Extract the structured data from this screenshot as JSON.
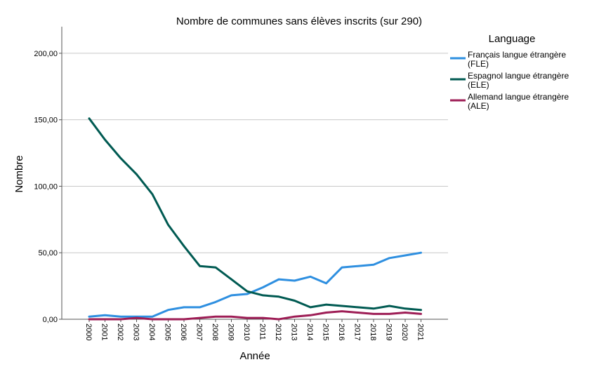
{
  "chart_data": {
    "type": "line",
    "title": "Nombre de communes sans élèves inscrits (sur 290)",
    "xlabel": "Année",
    "ylabel": "Nombre",
    "x": [
      "2000",
      "2001",
      "2002",
      "2003",
      "2004",
      "2005",
      "2006",
      "2007",
      "2008",
      "2009",
      "2010",
      "2011",
      "2012",
      "2013",
      "2014",
      "2015",
      "2016",
      "2017",
      "2018",
      "2019",
      "2020",
      "2021"
    ],
    "ylim": [
      0,
      220
    ],
    "yticks": [
      0,
      50,
      100,
      150,
      200
    ],
    "ytick_labels": [
      "0,00",
      "50,00",
      "100,00",
      "150,00",
      "200,00"
    ],
    "grid": true,
    "legend": {
      "title": "Language",
      "position": "right"
    },
    "series": [
      {
        "name": "Français langue étrangère (FLE)",
        "name_lines": [
          "Français langue étrangère",
          "(FLE)"
        ],
        "color": "#2e8fe0",
        "values": [
          2,
          3,
          2,
          2,
          2,
          7,
          9,
          9,
          13,
          18,
          19,
          24,
          30,
          29,
          32,
          27,
          39,
          40,
          41,
          46,
          48,
          50
        ]
      },
      {
        "name": "Espagnol langue étrangère (ELE)",
        "name_lines": [
          "Espagnol langue étrangère",
          "(ELE)"
        ],
        "color": "#005a52",
        "values": [
          151,
          135,
          121,
          109,
          94,
          71,
          55,
          40,
          39,
          30,
          21,
          18,
          17,
          14,
          9,
          11,
          10,
          9,
          8,
          10,
          8,
          7
        ]
      },
      {
        "name": "Allemand langue étrangère (ALE)",
        "name_lines": [
          "Allemand langue étrangère",
          "(ALE)"
        ],
        "color": "#9e1e56",
        "values": [
          0,
          0,
          0,
          1,
          0,
          0,
          0,
          1,
          2,
          2,
          1,
          1,
          0,
          2,
          3,
          5,
          6,
          5,
          4,
          4,
          5,
          4
        ]
      }
    ]
  }
}
